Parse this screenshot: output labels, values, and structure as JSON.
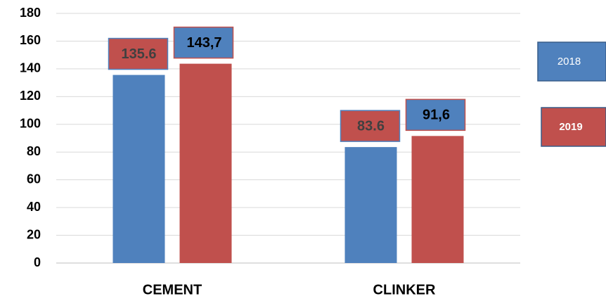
{
  "chart_data": {
    "type": "bar",
    "categories": [
      "CEMENT",
      "CLINKER"
    ],
    "series": [
      {
        "name": "2018",
        "color": "#4f81bd",
        "values": [
          135.6,
          83.6
        ],
        "value_labels": [
          "135.6",
          "83.6"
        ]
      },
      {
        "name": "2019",
        "color": "#c0504d",
        "values": [
          143.7,
          91.6
        ],
        "value_labels": [
          "143,7",
          "91,6"
        ]
      }
    ],
    "ylim": [
      0,
      180
    ],
    "yticks": [
      0,
      20,
      40,
      60,
      80,
      100,
      120,
      140,
      160,
      180
    ],
    "grid": true,
    "legend": "right"
  }
}
